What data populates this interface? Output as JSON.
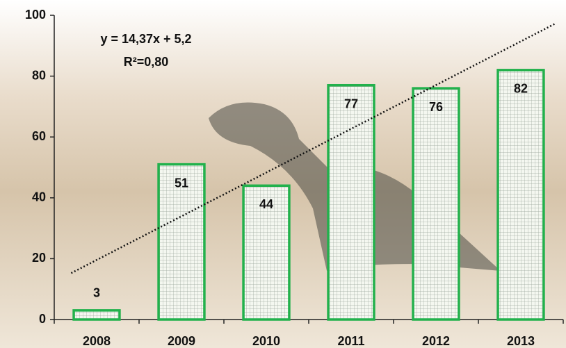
{
  "chart_data": {
    "type": "bar",
    "categories": [
      "2008",
      "2009",
      "2010",
      "2011",
      "2012",
      "2013"
    ],
    "values": [
      3,
      51,
      44,
      77,
      76,
      82
    ],
    "color": "#22b14c",
    "ylim": [
      0,
      100
    ],
    "yticks": [
      0,
      20,
      40,
      60,
      80,
      100
    ],
    "trendline": {
      "equation": "y = 14,37x + 5,2",
      "r_squared": "R²=0,80",
      "slope": 14.37,
      "intercept": 5.2
    }
  }
}
